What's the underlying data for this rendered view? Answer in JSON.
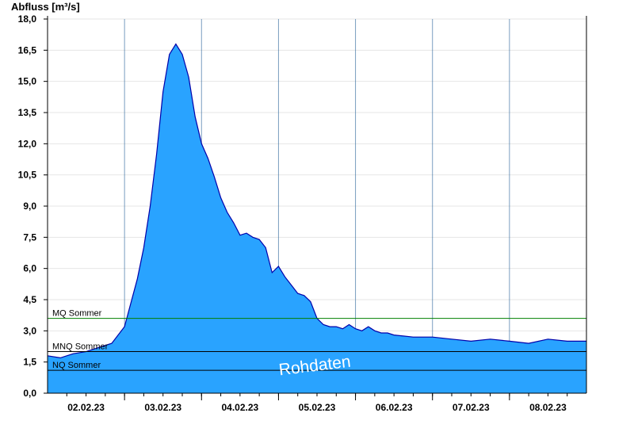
{
  "chart_data": {
    "type": "area",
    "title": "",
    "ylabel": "Abfluss [m³/s]",
    "xlabel": "",
    "ylim": [
      0,
      18
    ],
    "xlim": [
      "2023-02-01T12:00",
      "2023-02-08T12:00"
    ],
    "y_ticks": [
      "0,0",
      "1,5",
      "3,0",
      "4,5",
      "6,0",
      "7,5",
      "9,0",
      "10,5",
      "12,0",
      "13,5",
      "15,0",
      "16,5",
      "18,0"
    ],
    "x_ticks": [
      "02.02.23",
      "03.02.23",
      "04.02.23",
      "05.02.23",
      "06.02.23",
      "07.02.23",
      "08.02.23"
    ],
    "grid": true,
    "fill_color": "#29a3ff",
    "line_color": "#0000aa",
    "series": [
      {
        "x": [
          "2023-02-01T12:00",
          "2023-02-01T16:00",
          "2023-02-01T20:00",
          "2023-02-02T00:00",
          "2023-02-02T04:00",
          "2023-02-02T08:00",
          "2023-02-02T12:00",
          "2023-02-02T16:00",
          "2023-02-02T18:00",
          "2023-02-02T20:00",
          "2023-02-02T22:00",
          "2023-02-03T00:00",
          "2023-02-03T02:00",
          "2023-02-03T04:00",
          "2023-02-03T06:00",
          "2023-02-03T08:00",
          "2023-02-03T10:00",
          "2023-02-03T12:00",
          "2023-02-03T14:00",
          "2023-02-03T16:00",
          "2023-02-03T18:00",
          "2023-02-03T20:00",
          "2023-02-03T22:00",
          "2023-02-04T00:00",
          "2023-02-04T02:00",
          "2023-02-04T04:00",
          "2023-02-04T06:00",
          "2023-02-04T08:00",
          "2023-02-04T10:00",
          "2023-02-04T12:00",
          "2023-02-04T14:00",
          "2023-02-04T16:00",
          "2023-02-04T18:00",
          "2023-02-04T20:00",
          "2023-02-04T22:00",
          "2023-02-05T00:00",
          "2023-02-05T02:00",
          "2023-02-05T04:00",
          "2023-02-05T06:00",
          "2023-02-05T08:00",
          "2023-02-05T10:00",
          "2023-02-05T12:00",
          "2023-02-05T14:00",
          "2023-02-05T16:00",
          "2023-02-05T18:00",
          "2023-02-05T20:00",
          "2023-02-05T22:00",
          "2023-02-06T00:00",
          "2023-02-06T06:00",
          "2023-02-06T12:00",
          "2023-02-06T18:00",
          "2023-02-07T00:00",
          "2023-02-07T06:00",
          "2023-02-07T12:00",
          "2023-02-07T18:00",
          "2023-02-08T00:00",
          "2023-02-08T06:00",
          "2023-02-08T12:00"
        ],
        "values": [
          1.8,
          1.7,
          1.9,
          2.0,
          2.2,
          2.4,
          3.2,
          5.5,
          7.0,
          9.0,
          11.5,
          14.5,
          16.3,
          16.8,
          16.3,
          15.2,
          13.3,
          12.0,
          11.3,
          10.4,
          9.4,
          8.7,
          8.2,
          7.6,
          7.7,
          7.5,
          7.4,
          7.0,
          5.8,
          6.1,
          5.6,
          5.2,
          4.8,
          4.7,
          4.4,
          3.6,
          3.3,
          3.2,
          3.2,
          3.1,
          3.3,
          3.1,
          3.0,
          3.2,
          3.0,
          2.9,
          2.9,
          2.8,
          2.7,
          2.7,
          2.6,
          2.5,
          2.6,
          2.5,
          2.4,
          2.6,
          2.5,
          2.5
        ]
      }
    ],
    "reference_lines": [
      {
        "label": "MQ Sommer",
        "value": 3.6,
        "color": "#008000"
      },
      {
        "label": "MNQ Sommer",
        "value": 2.0,
        "color": "#000000"
      },
      {
        "label": "NQ Sommer",
        "value": 1.1,
        "color": "#000000"
      }
    ],
    "watermark": "Rohdaten"
  }
}
